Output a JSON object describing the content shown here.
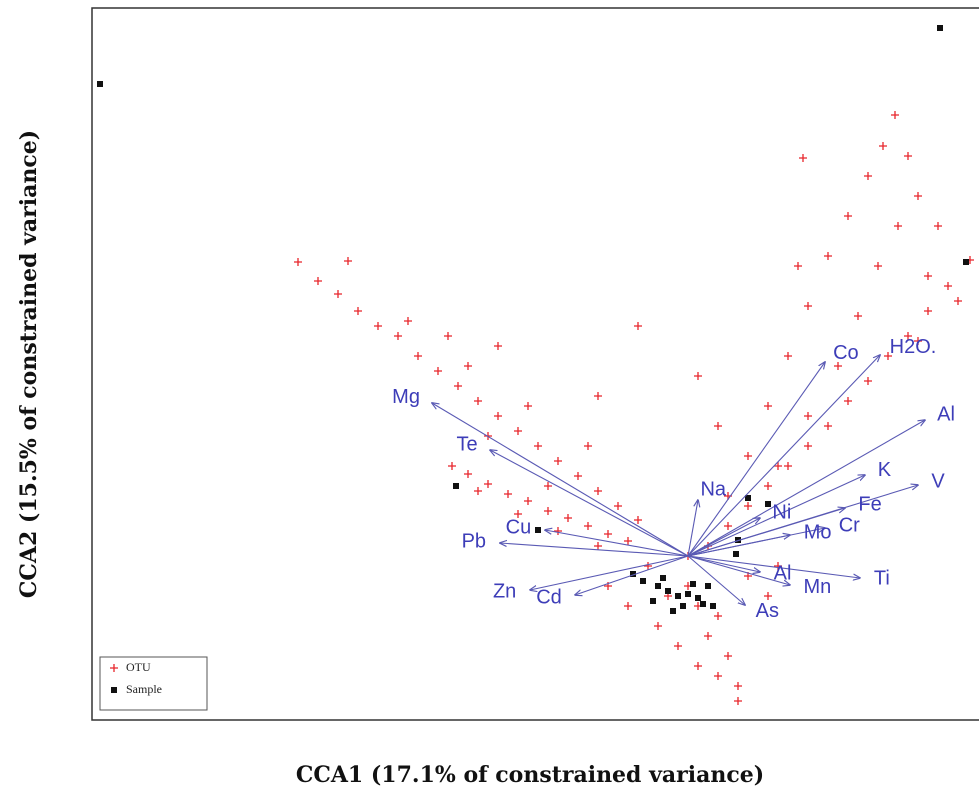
{
  "chart_data": {
    "type": "scatter",
    "x_label": "CCA1 (17.1% of constrained variance)",
    "y_label": "CCA2 (15.5% of constrained variance)",
    "xlim": [
      -5.96,
      2.91
    ],
    "ylim": [
      -1.64,
      5.48
    ],
    "legend": "lower left",
    "series": [
      {
        "name": "OTU",
        "color": "#e8252b",
        "marker": "plus",
        "x": [
          -3.9,
          -3.7,
          -3.5,
          -3.3,
          -3.1,
          -2.9,
          -2.7,
          -2.5,
          -2.3,
          -2.1,
          -1.9,
          -1.7,
          -1.5,
          -1.3,
          -1.1,
          -0.9,
          -0.7,
          -0.5,
          -3.4,
          -2.8,
          -2.2,
          -1.6,
          -1.0,
          -2.0,
          -1.4,
          -2.36,
          -2.2,
          -2.0,
          -1.8,
          -1.6,
          -1.4,
          -1.2,
          -1.0,
          -0.8,
          -0.6,
          -2.1,
          -1.7,
          -1.3,
          -0.9,
          2.07,
          1.95,
          2.2,
          1.8,
          2.3,
          1.6,
          2.1,
          1.4,
          1.9,
          1.2,
          1.7,
          1.0,
          1.5,
          0.8,
          1.2,
          0.6,
          0.9,
          0.4,
          2.5,
          2.4,
          1.15,
          1.1,
          2.82,
          2.6,
          2.4,
          2.2,
          2.0,
          1.8,
          1.6,
          1.4,
          1.2,
          1.0,
          0.8,
          0.6,
          0.4,
          2.7,
          2.3,
          0,
          0.1,
          -0.2,
          0.3,
          0.2,
          0.4,
          0.5,
          0.5,
          0.1,
          0.3,
          -0.3,
          -0.6,
          -0.8,
          0.6,
          0.8,
          0.9,
          -0.4,
          0.2,
          0,
          -0.1,
          -1.9,
          -0.5,
          0.1,
          -0.9,
          -2.4,
          0.3
        ],
        "y": [
          2.94,
          2.75,
          2.62,
          2.45,
          2.3,
          2.2,
          2.0,
          1.85,
          1.7,
          1.55,
          1.4,
          1.25,
          1.1,
          0.95,
          0.8,
          0.65,
          0.5,
          0.36,
          2.95,
          2.35,
          1.9,
          1.5,
          1.1,
          1.2,
          0.7,
          0.9,
          0.82,
          0.72,
          0.62,
          0.55,
          0.45,
          0.38,
          0.3,
          0.22,
          0.15,
          0.65,
          0.42,
          0.25,
          0.1,
          4.41,
          4.1,
          4.0,
          3.8,
          3.6,
          3.4,
          3.3,
          3.0,
          2.9,
          2.5,
          2.4,
          2.0,
          1.9,
          1.5,
          1.4,
          1.0,
          0.9,
          0.6,
          3.3,
          2.8,
          3.98,
          2.9,
          2.96,
          2.7,
          2.45,
          2.2,
          2.0,
          1.75,
          1.55,
          1.3,
          1.1,
          0.9,
          0.7,
          0.5,
          0.3,
          2.55,
          2.15,
          -0.3,
          -0.5,
          -0.4,
          -0.6,
          -0.8,
          -1.0,
          -1.3,
          -1.45,
          -1.1,
          -1.2,
          -0.7,
          -0.5,
          -0.3,
          -0.2,
          -0.4,
          -0.1,
          -0.1,
          0.1,
          0,
          -0.9,
          2.1,
          2.3,
          1.8,
          1.6,
          2.2,
          1.3
        ]
      },
      {
        "name": "Sample",
        "color": "#111111",
        "marker": "square",
        "x": [
          -5.88,
          2.52,
          2.78,
          -2.32,
          0.6,
          0.8,
          0.5,
          0.48,
          -1.5,
          -0.55,
          -0.45,
          -0.3,
          -0.2,
          -0.1,
          0,
          0.1,
          0.2,
          -0.35,
          -0.05,
          0.15,
          -0.25,
          0.05,
          0.25,
          -0.15
        ],
        "y": [
          4.72,
          5.28,
          2.94,
          0.7,
          0.58,
          0.52,
          0.16,
          0.02,
          0.26,
          -0.18,
          -0.25,
          -0.3,
          -0.35,
          -0.4,
          -0.38,
          -0.42,
          -0.3,
          -0.45,
          -0.5,
          -0.48,
          -0.22,
          -0.28,
          -0.5,
          -0.55
        ]
      }
    ],
    "vectors": {
      "color": "#5a5ab4",
      "labels": [
        "Mg",
        "Te",
        "Na",
        "Co",
        "H2O.",
        "Al",
        "K",
        "V",
        "Fe",
        "Cr",
        "Mo",
        "Ni",
        "Pb",
        "Cu",
        "Zn",
        "Cd",
        "Ti",
        "Mn",
        "Al",
        "As"
      ],
      "x": [
        -2.56,
        -1.98,
        0.1,
        1.37,
        1.92,
        2.37,
        1.77,
        2.3,
        1.57,
        1.37,
        1.02,
        0.72,
        -1.88,
        -1.43,
        -1.58,
        -1.13,
        1.72,
        1.02,
        0.72,
        0.57
      ],
      "y": [
        1.53,
        1.06,
        0.56,
        1.94,
        2.01,
        1.36,
        0.81,
        0.71,
        0.48,
        0.28,
        0.21,
        0.38,
        0.13,
        0.26,
        -0.34,
        -0.39,
        -0.22,
        -0.29,
        -0.16,
        -0.49
      ]
    }
  }
}
